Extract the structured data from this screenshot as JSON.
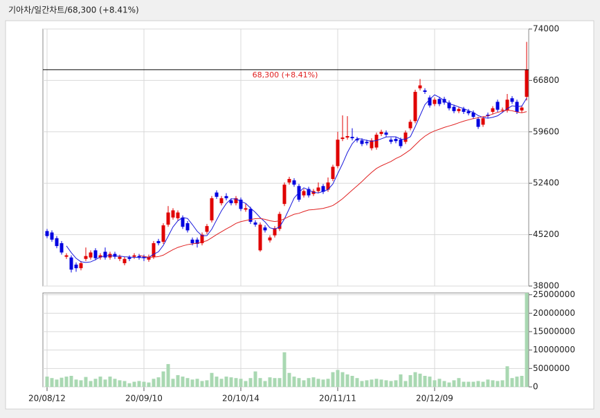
{
  "chart_data": {
    "type": "candlestick",
    "title": "기아차/일간차트/68,300 (+8.41%)",
    "categories": [
      "20/08/12",
      null,
      null,
      null,
      null,
      null,
      null,
      null,
      null,
      null,
      null,
      null,
      null,
      null,
      null,
      null,
      null,
      null,
      null,
      null,
      "20/09/10",
      null,
      null,
      null,
      null,
      null,
      null,
      null,
      null,
      null,
      null,
      null,
      null,
      null,
      null,
      null,
      null,
      null,
      null,
      null,
      "20/10/14",
      null,
      null,
      null,
      null,
      null,
      null,
      null,
      null,
      null,
      null,
      null,
      null,
      null,
      null,
      null,
      null,
      null,
      null,
      null,
      "20/11/11",
      null,
      null,
      null,
      null,
      null,
      null,
      null,
      null,
      null,
      null,
      null,
      null,
      null,
      null,
      null,
      null,
      null,
      null,
      null,
      "20/12/09",
      null,
      null,
      null,
      null,
      null,
      null,
      null,
      null,
      null,
      null,
      null,
      null,
      null,
      null,
      null,
      null,
      null,
      null,
      null
    ],
    "open": [
      45700,
      45500,
      44700,
      44000,
      42100,
      42000,
      41000,
      40500,
      41800,
      42000,
      43000,
      42000,
      42800,
      42000,
      42500,
      41800,
      41200,
      42000,
      42100,
      42200,
      42100,
      41700,
      42100,
      44300,
      44200,
      46600,
      47600,
      47500,
      47600,
      46800,
      44500,
      44500,
      44000,
      45600,
      47200,
      51100,
      49600,
      50600,
      50000,
      49600,
      50100,
      48700,
      48800,
      46900,
      43000,
      46200,
      44400,
      45100,
      46000,
      49500,
      52500,
      52800,
      52000,
      50700,
      51600,
      50900,
      51300,
      52000,
      51500,
      53000,
      54800,
      58600,
      58800,
      58900,
      58600,
      58400,
      58200,
      57300,
      57400,
      59300,
      59500,
      58500,
      58600,
      58500,
      58200,
      60100,
      61100,
      65700,
      65400,
      64400,
      63500,
      64200,
      64200,
      63700,
      63100,
      62500,
      62800,
      62500,
      62300,
      61400,
      60600,
      62000,
      62400,
      63800,
      62600,
      62600,
      64300,
      63800,
      62600,
      64500
    ],
    "high": [
      46000,
      45800,
      45000,
      44300,
      42600,
      42300,
      41300,
      41500,
      43400,
      43000,
      43300,
      42600,
      43400,
      42800,
      42800,
      42400,
      42100,
      42300,
      42600,
      42500,
      42400,
      42400,
      44300,
      44600,
      46800,
      49200,
      48900,
      48600,
      47900,
      47100,
      44800,
      44800,
      45500,
      46700,
      50600,
      51400,
      50600,
      51000,
      50300,
      50600,
      50400,
      49500,
      49100,
      47200,
      46900,
      46500,
      45100,
      46400,
      48400,
      52500,
      53300,
      53100,
      52300,
      51600,
      51900,
      51600,
      52500,
      52300,
      53200,
      55000,
      59600,
      61900,
      61800,
      60100,
      58900,
      58700,
      58500,
      58700,
      59500,
      59900,
      59800,
      58800,
      58900,
      58800,
      59800,
      61300,
      65500,
      67000,
      65700,
      64700,
      64400,
      64500,
      64500,
      64000,
      63400,
      63100,
      63100,
      62800,
      62600,
      61700,
      61800,
      62300,
      63200,
      64100,
      63000,
      64900,
      64600,
      64100,
      63300,
      72200
    ],
    "low": [
      44700,
      44200,
      43300,
      42400,
      41800,
      39900,
      40000,
      40200,
      41500,
      41700,
      41600,
      41700,
      41700,
      41700,
      41800,
      41500,
      40900,
      41500,
      41800,
      41700,
      41500,
      41400,
      41800,
      43700,
      43900,
      46300,
      47300,
      47200,
      46000,
      45500,
      43700,
      43400,
      43700,
      45300,
      46900,
      50200,
      49300,
      50000,
      49300,
      49300,
      48500,
      48400,
      46700,
      46300,
      42800,
      45500,
      44100,
      44800,
      45700,
      49200,
      52200,
      51900,
      49800,
      50400,
      50400,
      50600,
      51000,
      50900,
      51200,
      52700,
      54500,
      58300,
      58500,
      58400,
      58100,
      57600,
      57700,
      57000,
      57100,
      59000,
      58900,
      57900,
      58000,
      57300,
      57900,
      59800,
      60800,
      65400,
      64900,
      63000,
      63200,
      63200,
      63400,
      62600,
      62200,
      62200,
      62100,
      61900,
      61400,
      60000,
      60300,
      61500,
      62100,
      62400,
      62300,
      62300,
      63500,
      62100,
      62300,
      64000
    ],
    "close": [
      45000,
      44500,
      43600,
      42700,
      42300,
      40300,
      40500,
      41200,
      42200,
      42700,
      41900,
      42300,
      42000,
      42500,
      42100,
      42100,
      41800,
      41800,
      42300,
      42000,
      41900,
      42100,
      44000,
      44000,
      46500,
      48300,
      48600,
      48300,
      46300,
      45800,
      44000,
      43900,
      45200,
      46400,
      50300,
      50500,
      50300,
      50300,
      49600,
      50300,
      48800,
      48900,
      47000,
      46600,
      46600,
      45800,
      44800,
      46100,
      48100,
      52200,
      53000,
      52200,
      50100,
      51300,
      50700,
      51300,
      51800,
      51200,
      52500,
      54700,
      58500,
      58800,
      59000,
      58700,
      58400,
      57900,
      58000,
      58400,
      59200,
      59600,
      59200,
      58200,
      58300,
      57600,
      59500,
      61000,
      65200,
      66100,
      65200,
      63300,
      64100,
      63500,
      63700,
      62900,
      62500,
      62800,
      62400,
      62200,
      61700,
      60300,
      61500,
      61800,
      62900,
      62700,
      62700,
      64100,
      63800,
      62400,
      63000,
      68300
    ],
    "up_color": "#e00000",
    "down_color": "#0000e0",
    "lines": [
      {
        "color": "#1a1adc",
        "values": [
          null,
          null,
          null,
          null,
          43620,
          42680,
          41880,
          41400,
          41300,
          41380,
          41700,
          42060,
          42220,
          42280,
          42160,
          42200,
          42100,
          42060,
          42020,
          42000,
          41960,
          42020,
          42460,
          42800,
          43700,
          44980,
          46280,
          47140,
          47600,
          47460,
          46600,
          45660,
          45040,
          45060,
          45960,
          47260,
          48540,
          49560,
          50200,
          50200,
          49860,
          49580,
          48920,
          48320,
          47580,
          46980,
          46160,
          45980,
          46280,
          47400,
          48840,
          50320,
          51120,
          51760,
          51460,
          51120,
          51040,
          51260,
          51500,
          52300,
          53740,
          55140,
          56700,
          57940,
          58680,
          58560,
          58400,
          58280,
          58380,
          58620,
          58880,
          58920,
          58900,
          58580,
          58560,
          58920,
          60320,
          61880,
          63400,
          64160,
          64780,
          64440,
          63960,
          63500,
          63340,
          63080,
          62860,
          62560,
          62320,
          61880,
          61620,
          61500,
          61640,
          61840,
          62320,
          62840,
          63240,
          63140,
          63200,
          64320
        ]
      },
      {
        "color": "#e02020",
        "values": [
          null,
          null,
          null,
          null,
          null,
          null,
          null,
          null,
          null,
          null,
          null,
          null,
          null,
          null,
          null,
          null,
          null,
          null,
          null,
          42300,
          42150,
          42030,
          42050,
          42120,
          42330,
          42720,
          43100,
          43410,
          43620,
          43800,
          43900,
          44000,
          44150,
          44350,
          44770,
          45200,
          45600,
          46000,
          46370,
          46780,
          47020,
          47170,
          47320,
          47430,
          47470,
          47340,
          47150,
          47040,
          47130,
          47430,
          47760,
          48050,
          48190,
          48440,
          48660,
          48710,
          48790,
          48880,
          49060,
          49280,
          49730,
          50230,
          50830,
          51440,
          52030,
          52640,
          53300,
          53920,
          54470,
          54840,
          55150,
          55450,
          55860,
          56180,
          56620,
          57100,
          57770,
          58430,
          58990,
          59420,
          59730,
          59970,
          60220,
          60420,
          60620,
          60870,
          61090,
          61280,
          61460,
          61570,
          61680,
          61860,
          62080,
          62330,
          62490,
          62630,
          62560,
          62380,
          62270,
          62420
        ]
      }
    ],
    "reference": {
      "value": 68300,
      "label": "68,300 (+8.41%)"
    },
    "ylim": [
      38000,
      74000
    ],
    "yticks": [
      38000,
      45200,
      52400,
      59600,
      66800,
      74000
    ],
    "grid": true,
    "volume": {
      "color": "#a9d8b2",
      "values": [
        2800000,
        2400000,
        2000000,
        2500000,
        2800000,
        3000000,
        2000000,
        1800000,
        2700000,
        1600000,
        2200000,
        2800000,
        2000000,
        2800000,
        2200000,
        1800000,
        1600000,
        1000000,
        1400000,
        1600000,
        1400000,
        1200000,
        2200000,
        2600000,
        4200000,
        6200000,
        2200000,
        3200000,
        2800000,
        2400000,
        2000000,
        2200000,
        1600000,
        1800000,
        3800000,
        2800000,
        2200000,
        2800000,
        2600000,
        2400000,
        2200000,
        1600000,
        2400000,
        4200000,
        2400000,
        1600000,
        2600000,
        2400000,
        2400000,
        9400000,
        3800000,
        2800000,
        2400000,
        1800000,
        2400000,
        2600000,
        2200000,
        2000000,
        2200000,
        4000000,
        4600000,
        4000000,
        3400000,
        3000000,
        2400000,
        1600000,
        1800000,
        2000000,
        2200000,
        2000000,
        1800000,
        1600000,
        1800000,
        3400000,
        1600000,
        3200000,
        4000000,
        3600000,
        3000000,
        2800000,
        1800000,
        2200000,
        1600000,
        1200000,
        1800000,
        2400000,
        1400000,
        1400000,
        1400000,
        1600000,
        1400000,
        2000000,
        1800000,
        1600000,
        1800000,
        5600000,
        2400000,
        2800000,
        3000000,
        25500000
      ],
      "ylim": [
        0,
        25500000
      ],
      "yticks": [
        0,
        5000000,
        10000000,
        15000000,
        20000000,
        25000000
      ]
    }
  }
}
